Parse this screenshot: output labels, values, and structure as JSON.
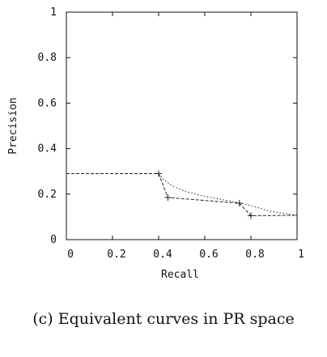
{
  "caption": "(c) Equivalent curves in PR space",
  "chart_data": {
    "type": "line",
    "xlabel": "Recall",
    "ylabel": "Precision",
    "xlim": [
      0,
      1
    ],
    "ylim": [
      0,
      1
    ],
    "x_ticks": [
      "0",
      "0.2",
      "0.4",
      "0.6",
      "0.8",
      "1"
    ],
    "y_ticks": [
      "0",
      "0.2",
      "0.4",
      "0.6",
      "0.8",
      "1"
    ],
    "grid": false,
    "series": [
      {
        "style": "dashed",
        "color": "#222222",
        "markers": true,
        "x": [
          0,
          0.4,
          0.44,
          0.75,
          0.8,
          1.0
        ],
        "y": [
          0.29,
          0.29,
          0.185,
          0.16,
          0.105,
          0.107
        ]
      },
      {
        "style": "dotted",
        "color": "#222222",
        "markers": false,
        "x": [
          0.4,
          0.42,
          0.46,
          0.52,
          0.6,
          0.68,
          0.75,
          0.8,
          0.88,
          1.0
        ],
        "y": [
          0.29,
          0.265,
          0.235,
          0.21,
          0.19,
          0.175,
          0.162,
          0.15,
          0.125,
          0.107
        ]
      }
    ]
  }
}
